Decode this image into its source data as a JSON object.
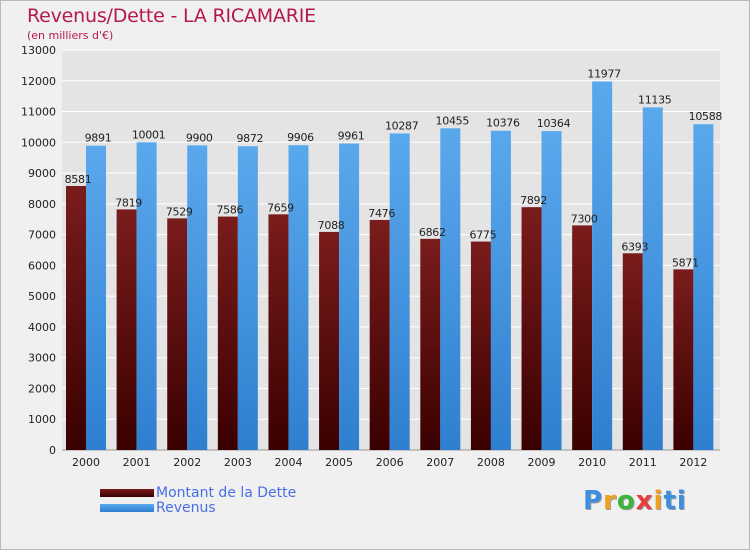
{
  "header": {
    "title": "Revenus/Dette - LA RICAMARIE",
    "subtitle": "(en milliers d'€)"
  },
  "legend": {
    "dette_label": "Montant de la Dette",
    "revenus_label": "Revenus"
  },
  "logo": {
    "text": "Proxiti",
    "letters": [
      "P",
      "r",
      "o",
      "x",
      "i",
      "ti"
    ]
  },
  "colors": {
    "dette_top": "#7a1c1c",
    "dette_bottom": "#3a0000",
    "revenus_top": "#5aa8ec",
    "revenus_bottom": "#2f7fd0",
    "grid": "#ffffff",
    "title": "#b5174f"
  },
  "chart_data": {
    "type": "bar",
    "title": "Revenus/Dette - LA RICAMARIE",
    "subtitle": "(en milliers d'€)",
    "xlabel": "",
    "ylabel": "",
    "categories": [
      "2000",
      "2001",
      "2002",
      "2003",
      "2004",
      "2005",
      "2006",
      "2007",
      "2008",
      "2009",
      "2010",
      "2011",
      "2012"
    ],
    "series": [
      {
        "name": "Montant de la Dette",
        "values": [
          8581,
          7819,
          7529,
          7586,
          7659,
          7088,
          7476,
          6862,
          6775,
          7892,
          7300,
          6393,
          5871
        ]
      },
      {
        "name": "Revenus",
        "values": [
          9891,
          10001,
          9900,
          9872,
          9906,
          9961,
          10287,
          10455,
          10376,
          10364,
          11977,
          11135,
          10588
        ]
      }
    ],
    "data_labels": {
      "dette": [
        "8581",
        "7819",
        "7529",
        "7586",
        "7659",
        "7088",
        "7476",
        "6862",
        "6775",
        "7892",
        "7300",
        "6393",
        "5871"
      ],
      "revenus": [
        "9891",
        "10001",
        "9900",
        "9872",
        "9906",
        "9961",
        "10287",
        "10455",
        "10376",
        "10364",
        "11977",
        "11135",
        "10588"
      ]
    },
    "yticks": [
      "0",
      "1000",
      "2000",
      "3000",
      "4000",
      "5000",
      "6000",
      "7000",
      "8000",
      "9000",
      "10000",
      "11000",
      "12000",
      "13000"
    ],
    "ylim": [
      0,
      13000
    ],
    "grid": true,
    "legend_position": "bottom-left"
  }
}
